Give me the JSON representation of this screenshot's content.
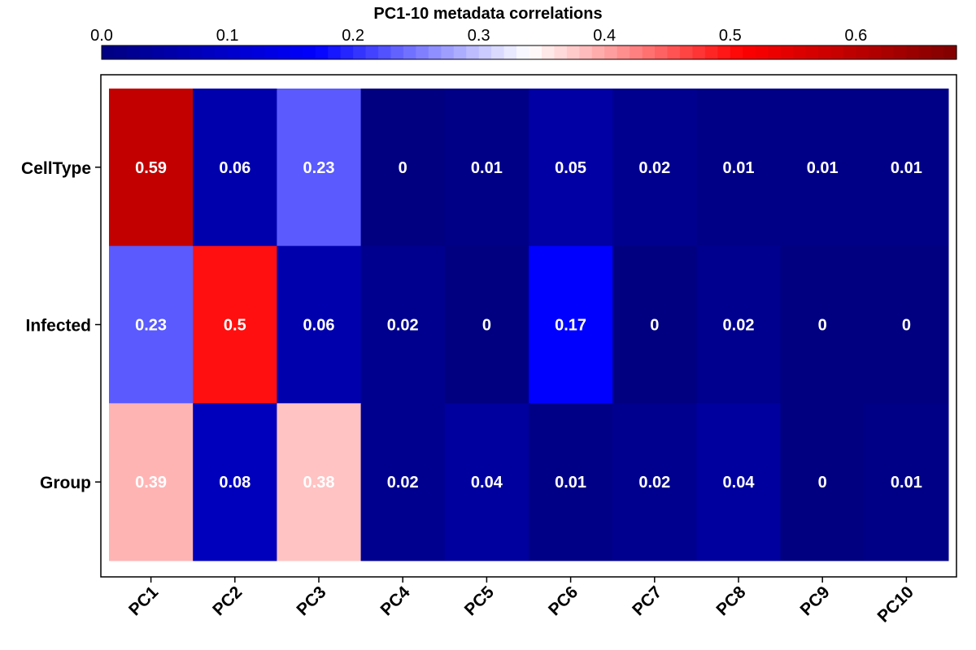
{
  "chart_data": {
    "type": "heatmap",
    "title": "PC1-10 metadata correlations",
    "columns": [
      "PC1",
      "PC2",
      "PC3",
      "PC4",
      "PC5",
      "PC6",
      "PC7",
      "PC8",
      "PC9",
      "PC10"
    ],
    "rows": [
      "CellType",
      "Infected",
      "Group"
    ],
    "values": [
      [
        0.59,
        0.06,
        0.23,
        0,
        0.01,
        0.05,
        0.02,
        0.01,
        0.01,
        0.01
      ],
      [
        0.23,
        0.5,
        0.06,
        0.02,
        0,
        0.17,
        0,
        0.02,
        0,
        0
      ],
      [
        0.39,
        0.08,
        0.38,
        0.02,
        0.04,
        0.01,
        0.02,
        0.04,
        0,
        0.01
      ]
    ],
    "labels": [
      [
        "0.59",
        "0.06",
        "0.23",
        "0",
        "0.01",
        "0.05",
        "0.02",
        "0.01",
        "0.01",
        "0.01"
      ],
      [
        "0.23",
        "0.5",
        "0.06",
        "0.02",
        "0",
        "0.17",
        "0",
        "0.02",
        "0",
        "0"
      ],
      [
        "0.39",
        "0.08",
        "0.38",
        "0.02",
        "0.04",
        "0.01",
        "0.02",
        "0.04",
        "0",
        "0.01"
      ]
    ],
    "colorbar": {
      "range": [
        0,
        0.68
      ],
      "ticks": [
        0.0,
        0.1,
        0.2,
        0.3,
        0.4,
        0.5,
        0.6
      ],
      "tick_labels": [
        "0.0",
        "0.1",
        "0.2",
        "0.3",
        "0.4",
        "0.5",
        "0.6"
      ],
      "placement": "top",
      "colors": [
        "#000080",
        "#0000ff",
        "#ffffff",
        "#ff0000",
        "#800000"
      ]
    },
    "grid": false
  }
}
